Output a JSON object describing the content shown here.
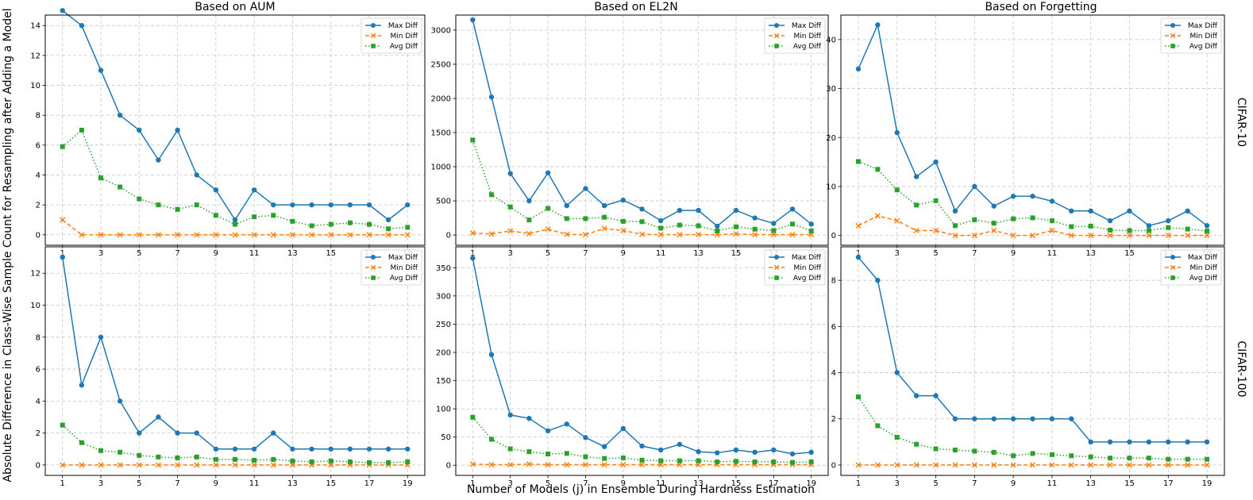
{
  "chart_data": {
    "type": "line",
    "xlabel": "Number of Models (j) in Ensemble During Hardness Estimation",
    "ylabel": "Absolute Difference in Class-Wise Sample Count for Resampling after Adding a Model",
    "column_titles": [
      "Based on AUM",
      "Based on EL2N",
      "Based on Forgetting"
    ],
    "row_labels": [
      "CIFAR-10",
      "CIFAR-100"
    ],
    "x": [
      1,
      2,
      3,
      4,
      5,
      6,
      7,
      8,
      9,
      10,
      11,
      12,
      13,
      14,
      15,
      16,
      17,
      18,
      19
    ],
    "x_ticks": [
      1,
      3,
      5,
      7,
      9,
      11,
      13,
      15,
      17,
      19
    ],
    "legend_position": "top-right",
    "series_styles": [
      {
        "name": "Max Diff",
        "color": "#1f77b4",
        "marker": "circle",
        "line": "solid"
      },
      {
        "name": "Min Diff",
        "color": "#ff7f0e",
        "marker": "x",
        "line": "dashed"
      },
      {
        "name": "Avg Diff",
        "color": "#2ca02c",
        "marker": "square",
        "line": "dotted"
      }
    ],
    "panels": [
      {
        "row": 0,
        "col": 0,
        "ylim": [
          -0.7,
          14.7
        ],
        "yticks": [
          0,
          2,
          4,
          6,
          8,
          10,
          12,
          14
        ],
        "series": [
          {
            "name": "Max Diff",
            "values": [
              15,
              14,
              11,
              8,
              7,
              5,
              7,
              4,
              3,
              1,
              3,
              2,
              2,
              2,
              2,
              2,
              2,
              1,
              2
            ]
          },
          {
            "name": "Min Diff",
            "values": [
              1,
              0,
              0,
              0,
              0,
              0,
              0,
              0,
              0,
              0,
              0,
              0,
              0,
              0,
              0,
              0,
              0,
              0,
              0
            ]
          },
          {
            "name": "Avg Diff",
            "values": [
              5.9,
              7.0,
              3.8,
              3.2,
              2.4,
              2.0,
              1.7,
              2.0,
              1.3,
              0.7,
              1.2,
              1.3,
              0.9,
              0.6,
              0.7,
              0.8,
              0.7,
              0.4,
              0.5
            ]
          }
        ]
      },
      {
        "row": 0,
        "col": 1,
        "ylim": [
          -150,
          3220
        ],
        "yticks": [
          0,
          500,
          1000,
          1500,
          2000,
          2500,
          3000
        ],
        "series": [
          {
            "name": "Max Diff",
            "values": [
              3150,
              2020,
              900,
              500,
              910,
              430,
              680,
              430,
              510,
              380,
              210,
              360,
              360,
              130,
              360,
              250,
              170,
              380,
              160
            ]
          },
          {
            "name": "Min Diff",
            "values": [
              30,
              15,
              60,
              20,
              85,
              10,
              5,
              95,
              65,
              10,
              5,
              5,
              5,
              5,
              15,
              5,
              5,
              5,
              5
            ]
          },
          {
            "name": "Avg Diff",
            "values": [
              1390,
              590,
              410,
              220,
              390,
              240,
              240,
              260,
              200,
              195,
              100,
              145,
              135,
              60,
              120,
              85,
              65,
              160,
              60
            ]
          }
        ]
      },
      {
        "row": 0,
        "col": 2,
        "ylim": [
          -2,
          45
        ],
        "yticks": [
          0,
          10,
          20,
          30,
          40
        ],
        "series": [
          {
            "name": "Max Diff",
            "values": [
              34,
              43,
              21,
              12,
              15,
              5,
              10,
              6,
              8,
              8,
              7,
              5,
              5,
              3,
              5,
              2,
              3,
              5,
              2
            ]
          },
          {
            "name": "Min Diff",
            "values": [
              2,
              4,
              3,
              1,
              1,
              0,
              0,
              1,
              0,
              0,
              1,
              0,
              0,
              0,
              0,
              0,
              0,
              0,
              0
            ]
          },
          {
            "name": "Avg Diff",
            "values": [
              15.1,
              13.5,
              9.3,
              6.2,
              7.1,
              2.0,
              3.2,
              2.5,
              3.4,
              3.6,
              3.0,
              1.8,
              1.9,
              1.1,
              1.0,
              1.0,
              1.6,
              1.3,
              0.9
            ]
          }
        ]
      },
      {
        "row": 1,
        "col": 0,
        "ylim": [
          -0.65,
          13.65
        ],
        "yticks": [
          0,
          2,
          4,
          6,
          8,
          10,
          12
        ],
        "series": [
          {
            "name": "Max Diff",
            "values": [
              13,
              5,
              8,
              4,
              2,
              3,
              2,
              2,
              1,
              1,
              1,
              2,
              1,
              1,
              1,
              1,
              1,
              1,
              1
            ]
          },
          {
            "name": "Min Diff",
            "values": [
              0,
              0,
              0,
              0,
              0,
              0,
              0,
              0,
              0,
              0,
              0,
              0,
              0,
              0,
              0,
              0,
              0,
              0,
              0
            ]
          },
          {
            "name": "Avg Diff",
            "values": [
              2.5,
              1.4,
              0.9,
              0.8,
              0.6,
              0.5,
              0.45,
              0.5,
              0.35,
              0.35,
              0.3,
              0.35,
              0.25,
              0.2,
              0.25,
              0.2,
              0.15,
              0.15,
              0.2
            ]
          }
        ]
      },
      {
        "row": 1,
        "col": 1,
        "ylim": [
          -18,
          387
        ],
        "yticks": [
          0,
          50,
          100,
          150,
          200,
          250,
          300,
          350
        ],
        "series": [
          {
            "name": "Max Diff",
            "values": [
              367,
              196,
              89,
              83,
              61,
              73,
              49,
              33,
              65,
              34,
              27,
              37,
              24,
              22,
              27,
              23,
              27,
              20,
              23
            ]
          },
          {
            "name": "Min Diff",
            "values": [
              2,
              1,
              1,
              2,
              1,
              1,
              1,
              1,
              1,
              1,
              1,
              1,
              1,
              1,
              1,
              1,
              1,
              1,
              1
            ]
          },
          {
            "name": "Avg Diff",
            "values": [
              85,
              46,
              29,
              24,
              20,
              21,
              15,
              12,
              13,
              9,
              8,
              8,
              8,
              6,
              7,
              6,
              6,
              5,
              6
            ]
          }
        ]
      },
      {
        "row": 1,
        "col": 2,
        "ylim": [
          -0.45,
          9.45
        ],
        "yticks": [
          0,
          2,
          4,
          6,
          8
        ],
        "series": [
          {
            "name": "Max Diff",
            "values": [
              9,
              8,
              4,
              3,
              3,
              2,
              2,
              2,
              2,
              2,
              2,
              2,
              1,
              1,
              1,
              1,
              1,
              1,
              1
            ]
          },
          {
            "name": "Min Diff",
            "values": [
              0,
              0,
              0,
              0,
              0,
              0,
              0,
              0,
              0,
              0,
              0,
              0,
              0,
              0,
              0,
              0,
              0,
              0,
              0
            ]
          },
          {
            "name": "Avg Diff",
            "values": [
              2.95,
              1.7,
              1.2,
              0.9,
              0.7,
              0.65,
              0.6,
              0.55,
              0.4,
              0.5,
              0.45,
              0.4,
              0.35,
              0.3,
              0.3,
              0.3,
              0.25,
              0.25,
              0.25
            ]
          }
        ]
      }
    ]
  }
}
